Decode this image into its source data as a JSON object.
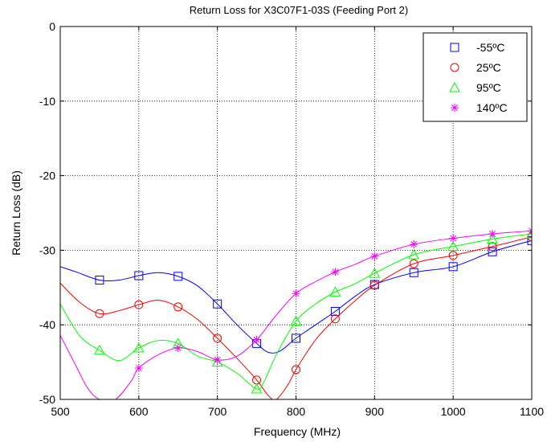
{
  "chart_data": {
    "type": "line",
    "title": "Return Loss for X3C07F1-03S (Feeding Port 2)",
    "xlabel": "Frequency (MHz)",
    "ylabel": "Return Loss (dB)",
    "xlim": [
      500,
      1100
    ],
    "ylim": [
      -50,
      0
    ],
    "xticks": [
      500,
      600,
      700,
      800,
      900,
      1000,
      1100
    ],
    "yticks": [
      0,
      -10,
      -20,
      -30,
      -40,
      -50
    ],
    "grid": true,
    "legend_position": "top-right",
    "series": [
      {
        "name": "-55ºC",
        "color": "#0000ff",
        "marker": "square",
        "x": [
          500,
          520,
          550,
          575,
          600,
          625,
          650,
          675,
          700,
          725,
          750,
          765,
          780,
          800,
          825,
          850,
          875,
          900,
          950,
          1000,
          1050,
          1100
        ],
        "y": [
          -32.2,
          -32.9,
          -34.0,
          -34.0,
          -33.4,
          -33.0,
          -33.5,
          -34.8,
          -37.2,
          -40.0,
          -42.5,
          -43.7,
          -43.5,
          -41.8,
          -40.0,
          -38.2,
          -36.2,
          -34.6,
          -33.0,
          -32.2,
          -30.2,
          -28.7
        ],
        "markers_x": [
          550,
          600,
          650,
          700,
          750,
          800,
          850,
          900,
          950,
          1000,
          1050,
          1100
        ],
        "markers_y": [
          -34.0,
          -33.4,
          -33.5,
          -37.2,
          -42.5,
          -41.8,
          -38.2,
          -34.6,
          -33.0,
          -32.2,
          -30.2,
          -28.7
        ]
      },
      {
        "name": "25ºC",
        "color": "#ff0000",
        "marker": "circle",
        "x": [
          500,
          525,
          550,
          575,
          600,
          625,
          650,
          675,
          700,
          725,
          750,
          765,
          775,
          790,
          800,
          825,
          850,
          875,
          900,
          950,
          1000,
          1050,
          1100
        ],
        "y": [
          -34.4,
          -37.0,
          -38.5,
          -38.1,
          -37.3,
          -36.7,
          -37.6,
          -39.3,
          -41.8,
          -44.5,
          -47.4,
          -49.5,
          -50.0,
          -48.0,
          -46.0,
          -42.0,
          -39.2,
          -36.8,
          -34.7,
          -31.8,
          -30.7,
          -29.5,
          -28.2
        ],
        "markers_x": [
          550,
          600,
          650,
          700,
          750,
          800,
          850,
          900,
          950,
          1000,
          1050,
          1100
        ],
        "markers_y": [
          -38.5,
          -37.3,
          -37.6,
          -41.8,
          -47.4,
          -46.0,
          -39.2,
          -34.7,
          -31.8,
          -30.7,
          -29.5,
          -28.2
        ]
      },
      {
        "name": "95ºC",
        "color": "#00ff00",
        "marker": "triangle",
        "x": [
          500,
          525,
          550,
          575,
          600,
          625,
          650,
          675,
          700,
          725,
          750,
          760,
          775,
          800,
          825,
          850,
          875,
          900,
          950,
          1000,
          1050,
          1100
        ],
        "y": [
          -37.2,
          -41.5,
          -43.4,
          -44.8,
          -43.1,
          -42.1,
          -42.5,
          -44.2,
          -45.0,
          -46.5,
          -48.6,
          -47.5,
          -44.0,
          -39.5,
          -37.2,
          -35.6,
          -34.5,
          -33.1,
          -30.6,
          -29.5,
          -28.5,
          -27.8
        ],
        "markers_x": [
          550,
          600,
          650,
          700,
          750,
          800,
          850,
          900,
          950,
          1000,
          1050,
          1100
        ],
        "markers_y": [
          -43.4,
          -43.1,
          -42.5,
          -45.0,
          -48.6,
          -39.5,
          -35.6,
          -33.1,
          -30.6,
          -29.5,
          -28.5,
          -27.8
        ]
      },
      {
        "name": "140ºC",
        "color": "#ff00ff",
        "marker": "star",
        "x": [
          500,
          520,
          535,
          550,
          570,
          590,
          600,
          625,
          650,
          675,
          700,
          725,
          750,
          775,
          800,
          825,
          850,
          875,
          900,
          950,
          1000,
          1050,
          1100
        ],
        "y": [
          -41.4,
          -45.5,
          -48.5,
          -50.0,
          -50.0,
          -47.6,
          -45.8,
          -44.0,
          -43.1,
          -43.6,
          -44.7,
          -44.2,
          -42.0,
          -38.7,
          -35.8,
          -34.2,
          -32.9,
          -31.9,
          -30.8,
          -29.2,
          -28.4,
          -27.8,
          -27.4
        ],
        "markers_x": [
          600,
          650,
          700,
          750,
          800,
          850,
          900,
          950,
          1000,
          1050,
          1100
        ],
        "markers_y": [
          -45.8,
          -43.1,
          -44.7,
          -42.0,
          -35.8,
          -32.9,
          -30.8,
          -29.2,
          -28.4,
          -27.8,
          -27.4
        ]
      }
    ]
  }
}
